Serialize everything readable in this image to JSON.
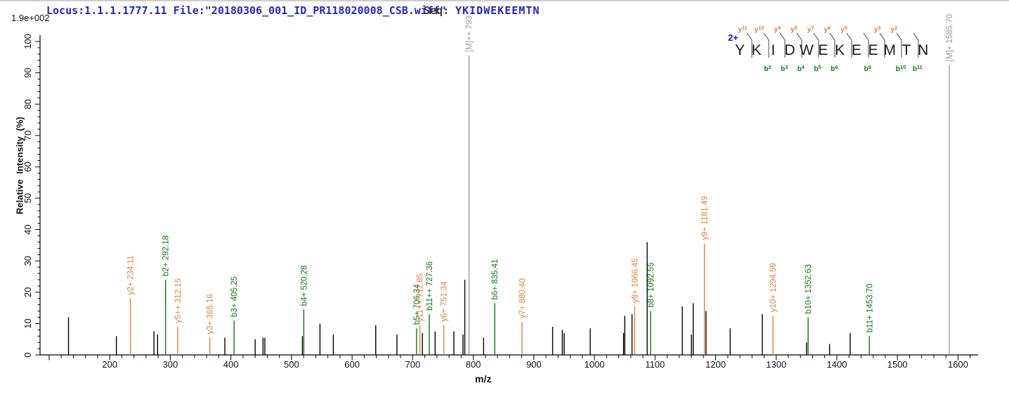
{
  "header": {
    "locus_file": "Locus:1.1.1.1777.11 File:\"20180306_001_ID_PR118020008_CSB.wiff\"",
    "seq_label": "Seq:",
    "seq_value": "YKIDWEKEEMTN",
    "scale_label": "1.9e+002"
  },
  "precursor": {
    "charge_label": "2+"
  },
  "sequence": {
    "residues": [
      "Y",
      "K",
      "I",
      "D",
      "W",
      "E",
      "K",
      "E",
      "E",
      "M",
      "T",
      "N"
    ],
    "boundaries": [
      {
        "after": 1,
        "y_ion": "y11",
        "b_ion": null
      },
      {
        "after": 2,
        "y_ion": "y10",
        "b_ion": "b2"
      },
      {
        "after": 3,
        "y_ion": "y9",
        "b_ion": "b3"
      },
      {
        "after": 4,
        "y_ion": "y8",
        "b_ion": "b4"
      },
      {
        "after": 5,
        "y_ion": "y7",
        "b_ion": "b5"
      },
      {
        "after": 6,
        "y_ion": "y6",
        "b_ion": "b6"
      },
      {
        "after": 7,
        "y_ion": "y5",
        "b_ion": null
      },
      {
        "after": 8,
        "y_ion": null,
        "b_ion": "b8"
      },
      {
        "after": 9,
        "y_ion": "y3",
        "b_ion": null
      },
      {
        "after": 10,
        "y_ion": "y2",
        "b_ion": "b10"
      },
      {
        "after": 11,
        "y_ion": null,
        "b_ion": "b11"
      }
    ]
  },
  "chart_data": {
    "type": "bar",
    "subtype": "ms2-fragmentation-stick-spectrum",
    "title": "",
    "xlabel": "m/z",
    "ylabel": "Relative Intensity (%)",
    "xlim": [
      85,
      1625
    ],
    "ylim": [
      0,
      100
    ],
    "x_ticks": [
      200,
      300,
      400,
      500,
      600,
      700,
      800,
      900,
      1000,
      1100,
      1200,
      1300,
      1400,
      1500,
      1600
    ],
    "x_tick_range": [
      100,
      1620
    ],
    "x_tick_major_step": 100,
    "x_tick_minor_step": 20,
    "y_ticks": [
      0,
      10,
      20,
      30,
      40,
      50,
      60,
      70,
      80,
      90,
      100
    ],
    "y_tick_major_step": 10,
    "y_tick_minor_step": 2,
    "legend": "none",
    "grid": false,
    "annotated_peaks": [
      {
        "mz": 234.11,
        "intensity_pct": 18,
        "label": "y2+ 234.11",
        "ion": "y"
      },
      {
        "mz": 292.18,
        "intensity_pct": 24,
        "label": "b2+ 292.18",
        "ion": "b"
      },
      {
        "mz": 312.15,
        "intensity_pct": 9,
        "label": "y5++ 312.15",
        "ion": "y"
      },
      {
        "mz": 365.16,
        "intensity_pct": 5.5,
        "label": "y3+ 365.16",
        "ion": "y"
      },
      {
        "mz": 405.25,
        "intensity_pct": 11,
        "label": "b3+ 405.25",
        "ion": "b"
      },
      {
        "mz": 520.28,
        "intensity_pct": 14.5,
        "label": "b4+ 520.28",
        "ion": "b"
      },
      {
        "mz": 706.34,
        "intensity_pct": 8.5,
        "label": "b5+ 706.34",
        "ion": "b"
      },
      {
        "mz": 711.85,
        "intensity_pct": 9.5,
        "label": "y11++ 711.85",
        "ion": "y"
      },
      {
        "mz": 727.36,
        "intensity_pct": 13,
        "label": "b11++ 727.36",
        "ion": "b"
      },
      {
        "mz": 751.34,
        "intensity_pct": 9.5,
        "label": "y6+ 751.34",
        "ion": "y"
      },
      {
        "mz": 793,
        "intensity_pct": 95.5,
        "label": "[M]++ 793",
        "ion": "M"
      },
      {
        "mz": 835.41,
        "intensity_pct": 16.5,
        "label": "b6+ 835.41",
        "ion": "b"
      },
      {
        "mz": 880.4,
        "intensity_pct": 10.5,
        "label": "y7+ 880.40",
        "ion": "y"
      },
      {
        "mz": 1066.45,
        "intensity_pct": 15.5,
        "label": "y8+ 1066.45",
        "ion": "y"
      },
      {
        "mz": 1092.55,
        "intensity_pct": 14,
        "label": "b8+ 1092.55",
        "ion": "b"
      },
      {
        "mz": 1181.49,
        "intensity_pct": 35.5,
        "label": "y9+ 1181.49",
        "ion": "y"
      },
      {
        "mz": 1294.59,
        "intensity_pct": 12.5,
        "label": "y10+ 1294.59",
        "ion": "y"
      },
      {
        "mz": 1352.63,
        "intensity_pct": 12,
        "label": "b10+ 1352.63",
        "ion": "b"
      },
      {
        "mz": 1453.7,
        "intensity_pct": 6,
        "label": "b11+ 1453.70",
        "ion": "b"
      },
      {
        "mz": 1585.7,
        "intensity_pct": 92.5,
        "label": "[M]+ 1585.70",
        "ion": "M"
      }
    ],
    "unannotated_peaks": [
      {
        "mz": 132,
        "intensity_pct": 12
      },
      {
        "mz": 211,
        "intensity_pct": 6
      },
      {
        "mz": 273,
        "intensity_pct": 7.5
      },
      {
        "mz": 279,
        "intensity_pct": 6.5
      },
      {
        "mz": 390,
        "intensity_pct": 5.5
      },
      {
        "mz": 440,
        "intensity_pct": 5
      },
      {
        "mz": 453,
        "intensity_pct": 5.5
      },
      {
        "mz": 456,
        "intensity_pct": 5.5
      },
      {
        "mz": 518,
        "intensity_pct": 6
      },
      {
        "mz": 547,
        "intensity_pct": 10
      },
      {
        "mz": 569,
        "intensity_pct": 6.5
      },
      {
        "mz": 639,
        "intensity_pct": 9.5
      },
      {
        "mz": 674,
        "intensity_pct": 6.5
      },
      {
        "mz": 716,
        "intensity_pct": 7
      },
      {
        "mz": 737,
        "intensity_pct": 7.5
      },
      {
        "mz": 768,
        "intensity_pct": 7.5
      },
      {
        "mz": 783,
        "intensity_pct": 6.5
      },
      {
        "mz": 786,
        "intensity_pct": 24
      },
      {
        "mz": 817,
        "intensity_pct": 5.5
      },
      {
        "mz": 931,
        "intensity_pct": 9
      },
      {
        "mz": 947,
        "intensity_pct": 8
      },
      {
        "mz": 950,
        "intensity_pct": 7
      },
      {
        "mz": 993,
        "intensity_pct": 8.5
      },
      {
        "mz": 1048,
        "intensity_pct": 7
      },
      {
        "mz": 1050,
        "intensity_pct": 12.5
      },
      {
        "mz": 1062,
        "intensity_pct": 13
      },
      {
        "mz": 1087,
        "intensity_pct": 36
      },
      {
        "mz": 1145,
        "intensity_pct": 15.5
      },
      {
        "mz": 1160,
        "intensity_pct": 6.5
      },
      {
        "mz": 1163,
        "intensity_pct": 16.5
      },
      {
        "mz": 1184,
        "intensity_pct": 14
      },
      {
        "mz": 1224,
        "intensity_pct": 8.5
      },
      {
        "mz": 1277,
        "intensity_pct": 13
      },
      {
        "mz": 1350,
        "intensity_pct": 4
      },
      {
        "mz": 1388,
        "intensity_pct": 3.5
      },
      {
        "mz": 1422,
        "intensity_pct": 7
      }
    ]
  },
  "colors": {
    "y_ion": "#E0813C",
    "b_ion": "#0C7A10",
    "precursor": "#8A8A8A",
    "precursor_label": "#9B9B9B",
    "peak": "#000000",
    "axis": "#000000",
    "header_text": "#2828B8",
    "seq_text": "#2525C0",
    "charge_text": "#1212DC"
  }
}
